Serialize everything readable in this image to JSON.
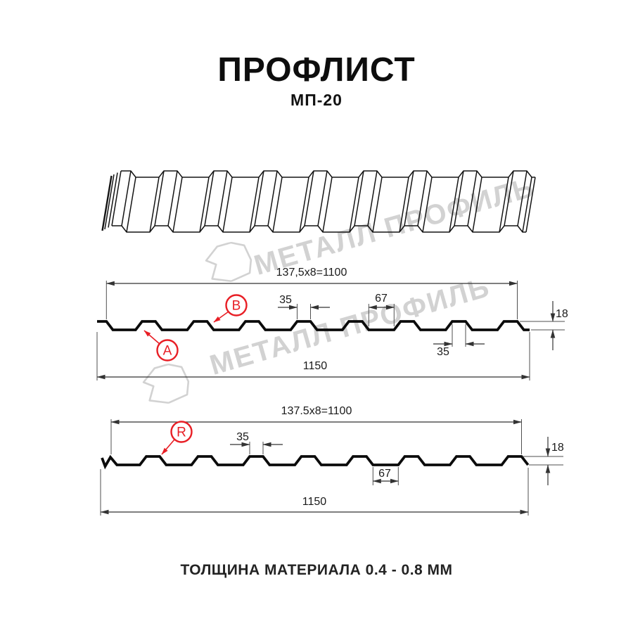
{
  "page": {
    "title": "ПРОФЛИСТ",
    "subtitle": "МП-20",
    "footer": "ТОЛЩИНА МАТЕРИАЛА 0.4 - 0.8 ММ"
  },
  "watermark": {
    "text": "МЕТАЛЛ ПРОФИЛЬ",
    "color": "#d2d2d2"
  },
  "colors": {
    "accent_red": "#e81e25",
    "line": "#1a1a1a"
  },
  "section_a": {
    "width_formula": "137,5x8=1100",
    "overall_width": "1150",
    "height": "18",
    "rib_width_top": "35",
    "rib_width_bottom": "35",
    "flange_width": "67",
    "label_a": "A",
    "label_b": "B"
  },
  "section_b": {
    "width_formula": "137.5x8=1100",
    "overall_width": "1150",
    "height": "18",
    "rib_width": "35",
    "flange_width": "67",
    "label_r": "R"
  }
}
